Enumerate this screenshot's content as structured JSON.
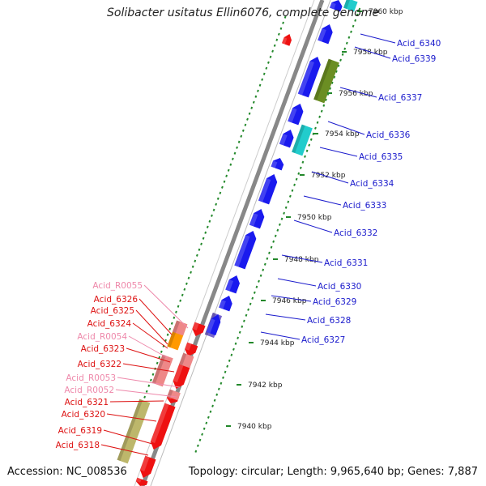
{
  "title": "Solibacter usitatus Ellin6076, complete genome",
  "accession": "Accession: NC_008536",
  "topology": "Topology: circular; Length: 9,965,640 bp; Genes: 7,887",
  "colors": {
    "backbone": "#888888",
    "gc_ticks": "#22882a",
    "kbp_ticks": "#22882a",
    "forward_gene": "#1a1aee",
    "reverse_gene": "#ee1111",
    "rna_gene": "#ee8888",
    "label_forward": "#1a1acc",
    "label_reverse": "#dd1111",
    "label_rna": "#ee88aa",
    "cog_olive": "#6b8e23",
    "cog_cyan": "#22cccc",
    "cog_khaki": "#bdb76b",
    "cog_orange": "#ff9900",
    "cog_purple": "#7766cc",
    "cog_pink": "#ee8888"
  },
  "kbp_markers": [
    {
      "text": "7960 kbp"
    },
    {
      "text": "7958 kbp"
    },
    {
      "text": "7956 kbp"
    },
    {
      "text": "7954 kbp"
    },
    {
      "text": "7952 kbp"
    },
    {
      "text": "7950 kbp"
    },
    {
      "text": "7948 kbp"
    },
    {
      "text": "7946 kbp"
    },
    {
      "text": "7944 kbp"
    },
    {
      "text": "7942 kbp"
    },
    {
      "text": "7940 kbp"
    }
  ],
  "forward_labels": [
    {
      "text": "Acid_6340"
    },
    {
      "text": "Acid_6339"
    },
    {
      "text": "Acid_6337"
    },
    {
      "text": "Acid_6336"
    },
    {
      "text": "Acid_6335"
    },
    {
      "text": "Acid_6334"
    },
    {
      "text": "Acid_6333"
    },
    {
      "text": "Acid_6332"
    },
    {
      "text": "Acid_6331"
    },
    {
      "text": "Acid_6330"
    },
    {
      "text": "Acid_6329"
    },
    {
      "text": "Acid_6328"
    },
    {
      "text": "Acid_6327"
    }
  ],
  "reverse_labels": [
    {
      "text": "Acid_R0055",
      "kind": "rna"
    },
    {
      "text": "Acid_6326",
      "kind": "cds"
    },
    {
      "text": "Acid_6325",
      "kind": "cds"
    },
    {
      "text": "Acid_6324",
      "kind": "cds"
    },
    {
      "text": "Acid_R0054",
      "kind": "rna"
    },
    {
      "text": "Acid_6323",
      "kind": "cds"
    },
    {
      "text": "Acid_6322",
      "kind": "cds"
    },
    {
      "text": "Acid_R0053",
      "kind": "rna"
    },
    {
      "text": "Acid_R0052",
      "kind": "rna"
    },
    {
      "text": "Acid_6321",
      "kind": "cds"
    },
    {
      "text": "Acid_6320",
      "kind": "cds"
    },
    {
      "text": "Acid_6319",
      "kind": "cds"
    },
    {
      "text": "Acid_6318",
      "kind": "cds"
    }
  ]
}
